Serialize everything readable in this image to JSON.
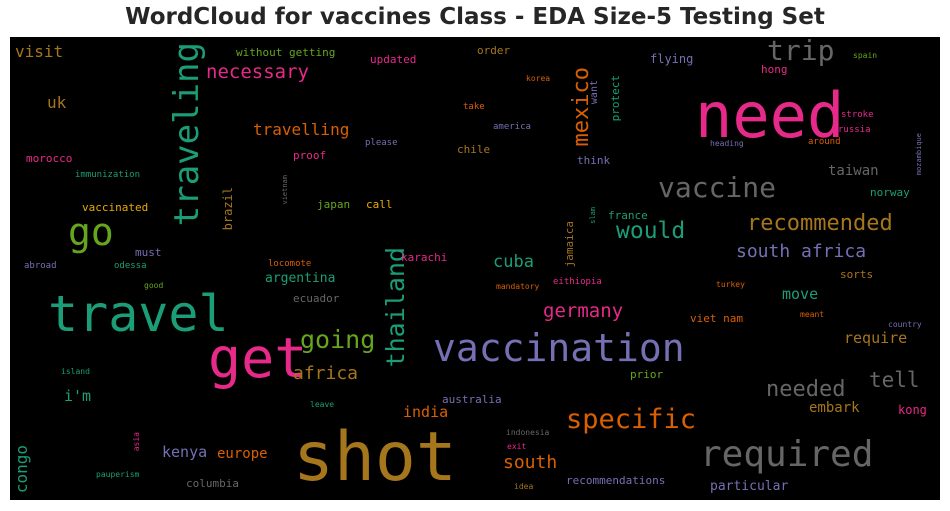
{
  "chart_data": {
    "type": "wordcloud",
    "title": "WordCloud for vaccines Class - EDA Size-5 Testing Set",
    "background": "#000000",
    "palette": "Dark2",
    "words": [
      {
        "text": "shot",
        "weight": 1.0,
        "color": "#a6761d"
      },
      {
        "text": "need",
        "weight": 0.9,
        "color": "#e7298a"
      },
      {
        "text": "travel",
        "weight": 0.78,
        "color": "#1b9e77"
      },
      {
        "text": "vaccination",
        "weight": 0.58,
        "color": "#7570b3"
      },
      {
        "text": "get",
        "weight": 0.8,
        "color": "#e7298a"
      },
      {
        "text": "required",
        "weight": 0.55,
        "color": "#666666"
      },
      {
        "text": "traveling",
        "weight": 0.52,
        "color": "#1b9e77"
      },
      {
        "text": "go",
        "weight": 0.52,
        "color": "#66a61e"
      },
      {
        "text": "trip",
        "weight": 0.4,
        "color": "#666666"
      },
      {
        "text": "vaccine",
        "weight": 0.4,
        "color": "#666666"
      },
      {
        "text": "thailand",
        "weight": 0.36,
        "color": "#1b9e77"
      },
      {
        "text": "mexico",
        "weight": 0.32,
        "color": "#d95f02"
      },
      {
        "text": "specific",
        "weight": 0.37,
        "color": "#d95f02"
      },
      {
        "text": "going",
        "weight": 0.34,
        "color": "#66a61e"
      },
      {
        "text": "recommended",
        "weight": 0.3,
        "color": "#a6761d"
      },
      {
        "text": "would",
        "weight": 0.3,
        "color": "#1b9e77"
      },
      {
        "text": "needed",
        "weight": 0.3,
        "color": "#666666"
      },
      {
        "text": "tell",
        "weight": 0.28,
        "color": "#666666"
      },
      {
        "text": "necessary",
        "weight": 0.26,
        "color": "#e7298a"
      },
      {
        "text": "south africa",
        "weight": 0.24,
        "color": "#7570b3"
      },
      {
        "text": "germany",
        "weight": 0.26,
        "color": "#e7298a"
      },
      {
        "text": "africa",
        "weight": 0.24,
        "color": "#a6761d"
      },
      {
        "text": "south",
        "weight": 0.24,
        "color": "#d95f02"
      },
      {
        "text": "travelling",
        "weight": 0.21,
        "color": "#d95f02"
      },
      {
        "text": "cuba",
        "weight": 0.22,
        "color": "#1b9e77"
      },
      {
        "text": "congo",
        "weight": 0.21,
        "color": "#1b9e77"
      },
      {
        "text": "uk",
        "weight": 0.2,
        "color": "#a6761d"
      },
      {
        "text": "visit",
        "weight": 0.2,
        "color": "#a6761d"
      },
      {
        "text": "i'm",
        "weight": 0.2,
        "color": "#1b9e77"
      },
      {
        "text": "kenya",
        "weight": 0.2,
        "color": "#7570b3"
      },
      {
        "text": "india",
        "weight": 0.2,
        "color": "#d95f02"
      },
      {
        "text": "move",
        "weight": 0.2,
        "color": "#1b9e77"
      },
      {
        "text": "require",
        "weight": 0.2,
        "color": "#a6761d"
      },
      {
        "text": "embark",
        "weight": 0.19,
        "color": "#a6761d"
      },
      {
        "text": "taiwan",
        "weight": 0.18,
        "color": "#666666"
      },
      {
        "text": "europe",
        "weight": 0.18,
        "color": "#d95f02"
      },
      {
        "text": "particular",
        "weight": 0.17,
        "color": "#7570b3"
      },
      {
        "text": "argentina",
        "weight": 0.16,
        "color": "#1b9e77"
      },
      {
        "text": "brazil",
        "weight": 0.16,
        "color": "#a6761d"
      },
      {
        "text": "flying",
        "weight": 0.15,
        "color": "#7570b3"
      },
      {
        "text": "kong",
        "weight": 0.15,
        "color": "#e7298a"
      },
      {
        "text": "morocco",
        "weight": 0.13,
        "color": "#e7298a"
      },
      {
        "text": "proof",
        "weight": 0.14,
        "color": "#e7298a"
      },
      {
        "text": "chile",
        "weight": 0.14,
        "color": "#a6761d"
      },
      {
        "text": "think",
        "weight": 0.14,
        "color": "#7570b3"
      },
      {
        "text": "norway",
        "weight": 0.14,
        "color": "#1b9e77"
      },
      {
        "text": "sorts",
        "weight": 0.14,
        "color": "#a6761d"
      },
      {
        "text": "updated",
        "weight": 0.13,
        "color": "#e7298a"
      },
      {
        "text": "without getting",
        "weight": 0.13,
        "color": "#66a61e"
      },
      {
        "text": "order",
        "weight": 0.13,
        "color": "#a6761d"
      },
      {
        "text": "hong",
        "weight": 0.13,
        "color": "#e7298a"
      },
      {
        "text": "japan",
        "weight": 0.13,
        "color": "#66a61e"
      },
      {
        "text": "call",
        "weight": 0.13,
        "color": "#e6ab02"
      },
      {
        "text": "vaccinated",
        "weight": 0.13,
        "color": "#e6ab02"
      },
      {
        "text": "must",
        "weight": 0.13,
        "color": "#7570b3"
      },
      {
        "text": "karachi",
        "weight": 0.13,
        "color": "#e7298a"
      },
      {
        "text": "france",
        "weight": 0.13,
        "color": "#1b9e77"
      },
      {
        "text": "ecuador",
        "weight": 0.13,
        "color": "#666666"
      },
      {
        "text": "columbia",
        "weight": 0.12,
        "color": "#666666"
      },
      {
        "text": "australia",
        "weight": 0.12,
        "color": "#7570b3"
      },
      {
        "text": "recommendations",
        "weight": 0.12,
        "color": "#7570b3"
      },
      {
        "text": "prior",
        "weight": 0.12,
        "color": "#66a61e"
      },
      {
        "text": "protect",
        "weight": 0.11,
        "color": "#1b9e77"
      },
      {
        "text": "jamaica",
        "weight": 0.11,
        "color": "#a6761d"
      },
      {
        "text": "viet nam",
        "weight": 0.11,
        "color": "#d95f02"
      },
      {
        "text": "want",
        "weight": 0.1,
        "color": "#7570b3"
      },
      {
        "text": "take",
        "weight": 0.09,
        "color": "#d95f02"
      },
      {
        "text": "america",
        "weight": 0.09,
        "color": "#7570b3"
      },
      {
        "text": "please",
        "weight": 0.09,
        "color": "#7570b3"
      },
      {
        "text": "immunization",
        "weight": 0.09,
        "color": "#1b9e77"
      },
      {
        "text": "abroad",
        "weight": 0.09,
        "color": "#7570b3"
      },
      {
        "text": "odessa",
        "weight": 0.09,
        "color": "#1b9e77"
      },
      {
        "text": "locomote",
        "weight": 0.09,
        "color": "#d95f02"
      },
      {
        "text": "good",
        "weight": 0.08,
        "color": "#66a61e"
      },
      {
        "text": "mandatory",
        "weight": 0.08,
        "color": "#d95f02"
      },
      {
        "text": "eithiopia",
        "weight": 0.09,
        "color": "#e7298a"
      },
      {
        "text": "turkey",
        "weight": 0.08,
        "color": "#d95f02"
      },
      {
        "text": "meant",
        "weight": 0.08,
        "color": "#d95f02"
      },
      {
        "text": "country",
        "weight": 0.08,
        "color": "#7570b3"
      },
      {
        "text": "island",
        "weight": 0.08,
        "color": "#1b9e77"
      },
      {
        "text": "leave",
        "weight": 0.08,
        "color": "#1b9e77"
      },
      {
        "text": "asia",
        "weight": 0.07,
        "color": "#e7298a"
      },
      {
        "text": "indonesia",
        "weight": 0.08,
        "color": "#666666"
      },
      {
        "text": "exit",
        "weight": 0.08,
        "color": "#e7298a"
      },
      {
        "text": "idea",
        "weight": 0.08,
        "color": "#a6761d"
      },
      {
        "text": "pauperism",
        "weight": 0.08,
        "color": "#1b9e77"
      },
      {
        "text": "korea",
        "weight": 0.08,
        "color": "#d95f02"
      },
      {
        "text": "spain",
        "weight": 0.08,
        "color": "#66a61e"
      },
      {
        "text": "stroke",
        "weight": 0.09,
        "color": "#e7298a"
      },
      {
        "text": "russia",
        "weight": 0.08,
        "color": "#e7298a"
      },
      {
        "text": "around",
        "weight": 0.09,
        "color": "#d95f02"
      },
      {
        "text": "heading",
        "weight": 0.08,
        "color": "#7570b3"
      },
      {
        "text": "mozambique",
        "weight": 0.07,
        "color": "#7570b3"
      },
      {
        "text": "vietnam",
        "weight": 0.07,
        "color": "#666666"
      },
      {
        "text": "slam",
        "weight": 0.07,
        "color": "#1b9e77"
      }
    ]
  }
}
